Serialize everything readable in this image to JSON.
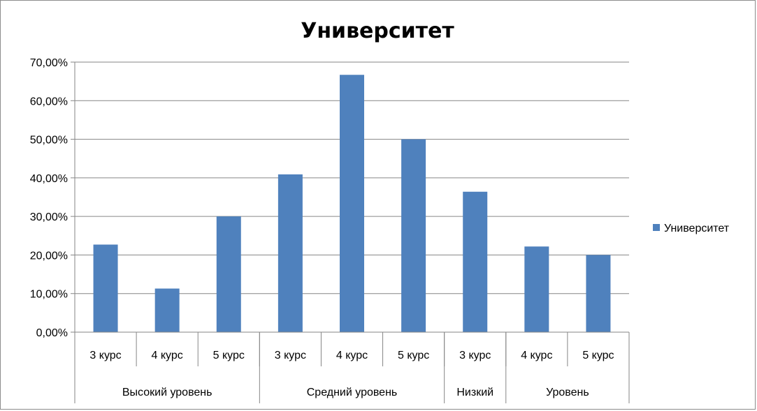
{
  "chart_data": {
    "type": "bar",
    "title": "Университет",
    "categories": [
      "3  курс",
      "4 курс",
      "5  курс",
      "3 курс",
      "4 курс",
      "5 курс",
      "3 курс",
      "4 курс",
      "5 курс"
    ],
    "groups": [
      {
        "label": "Высокий уровень",
        "span": 3
      },
      {
        "label": "Средний уровень",
        "span": 3
      },
      {
        "label": "Низкий",
        "span": 1
      },
      {
        "label": "Уровень",
        "span": 2
      }
    ],
    "series": [
      {
        "name": "Университет",
        "values": [
          22.7,
          11.3,
          30.0,
          40.9,
          66.7,
          50.0,
          36.4,
          22.2,
          20.0
        ]
      }
    ],
    "ylim": [
      0,
      70
    ],
    "yticks": [
      0,
      10,
      20,
      30,
      40,
      50,
      60,
      70
    ],
    "ytick_labels": [
      "0,00%",
      "10,00%",
      "20,00%",
      "30,00%",
      "40,00%",
      "50,00%",
      "60,00%",
      "70,00%"
    ],
    "grid": true,
    "legend_position": "right",
    "bar_color": "#4f81bd",
    "grid_color": "#868686"
  }
}
